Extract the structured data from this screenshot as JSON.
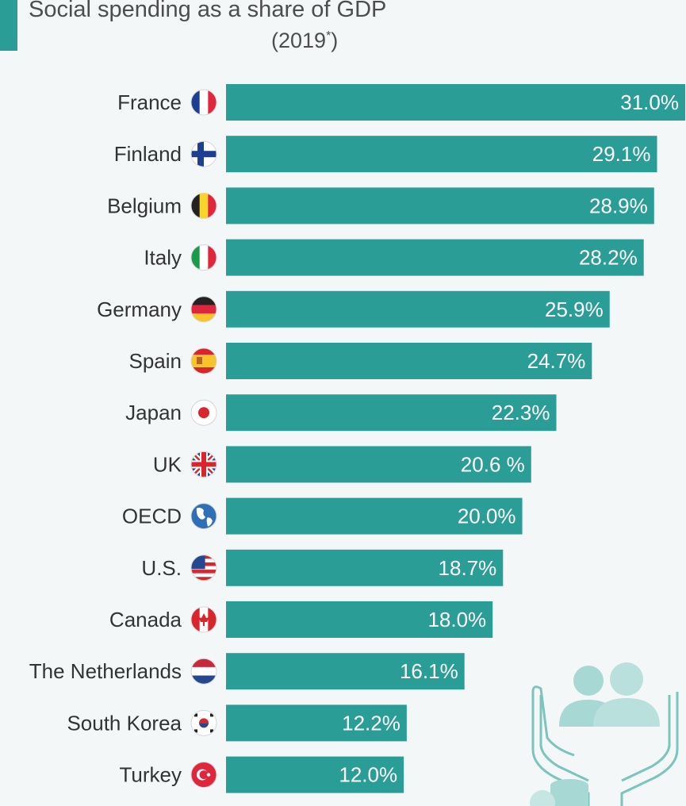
{
  "header": {
    "title": "Social spending as a share of GDP",
    "subtitle": "(2019",
    "subtitle_mark": "*",
    "subtitle_end": ")"
  },
  "colors": {
    "bar": "#2a9d96",
    "accent": "#2a9d96",
    "background": "#f3f7f8",
    "label_text": "#333333",
    "value_text": "#ffffff"
  },
  "chart_data": {
    "type": "bar",
    "orientation": "horizontal",
    "title": "Social spending as a share of GDP (2019*)",
    "unit": "% of GDP",
    "xlim": [
      0,
      31
    ],
    "grid": false,
    "legend": "none",
    "categories": [
      "France",
      "Finland",
      "Belgium",
      "Italy",
      "Germany",
      "Spain",
      "Japan",
      "UK",
      "OECD",
      "U.S.",
      "Canada",
      "The Netherlands",
      "South Korea",
      "Turkey"
    ],
    "values": [
      31.0,
      29.1,
      28.9,
      28.2,
      25.9,
      24.7,
      22.3,
      20.6,
      20.0,
      18.7,
      18.0,
      16.1,
      12.2,
      12.0
    ],
    "value_labels": [
      "31.0%",
      "29.1%",
      "28.9%",
      "28.2%",
      "25.9%",
      "24.7%",
      "22.3%",
      "20.6 %",
      "20.0%",
      "18.7%",
      "18.0%",
      "16.1%",
      "12.2%",
      "12.0%"
    ],
    "flag_icons": [
      "france-flag-icon",
      "finland-flag-icon",
      "belgium-flag-icon",
      "italy-flag-icon",
      "germany-flag-icon",
      "spain-flag-icon",
      "japan-flag-icon",
      "uk-flag-icon",
      "globe-icon",
      "us-flag-icon",
      "canada-flag-icon",
      "netherlands-flag-icon",
      "south-korea-flag-icon",
      "turkey-flag-icon"
    ]
  },
  "decoration": {
    "icon": "hands-holding-people-and-coins-icon"
  }
}
